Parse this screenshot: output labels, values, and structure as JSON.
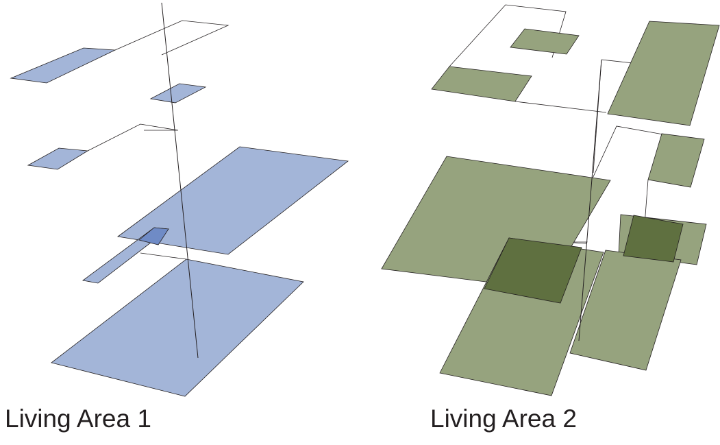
{
  "captions": {
    "left": "Living Area 1",
    "right": "Living Area 2"
  },
  "colors": {
    "area1_fill": "#a3b5d8",
    "area1_overlap": "#6f8bc6",
    "area2_fill": "#96a37e",
    "area2_overlap": "#5f7040",
    "outline": "#231f20"
  }
}
